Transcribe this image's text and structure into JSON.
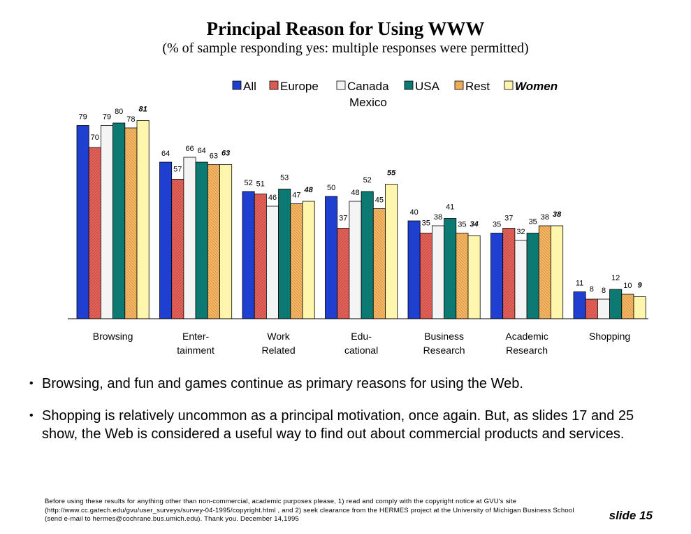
{
  "colors": {
    "All": "#1f3fd0",
    "Europe": "#e0645c",
    "Canada Mexico": "#f4f4f4",
    "USA": "#0c7a72",
    "Rest": "#f4b766",
    "Women": "#fff6ad"
  },
  "chart_data": {
    "type": "bar",
    "title": "Principal Reason for Using WWW",
    "subtitle": "(% of sample responding yes: multiple responses were permitted)",
    "categories": [
      [
        "Browsing"
      ],
      [
        "Enter-",
        "tainment"
      ],
      [
        "Work",
        "Related"
      ],
      [
        "Edu-",
        "cational"
      ],
      [
        "Business",
        "Research"
      ],
      [
        "Academic",
        "Research"
      ],
      [
        "Shopping"
      ]
    ],
    "series": [
      {
        "name": "All",
        "legend": [
          "All"
        ],
        "values": [
          79,
          64,
          52,
          50,
          40,
          35,
          11
        ]
      },
      {
        "name": "Europe",
        "legend": [
          "Europe"
        ],
        "values": [
          70,
          57,
          51,
          37,
          35,
          37,
          8
        ]
      },
      {
        "name": "Canada Mexico",
        "legend": [
          "Canada",
          "Mexico"
        ],
        "values": [
          79,
          66,
          46,
          48,
          38,
          32,
          8
        ]
      },
      {
        "name": "USA",
        "legend": [
          "USA"
        ],
        "values": [
          80,
          64,
          53,
          52,
          41,
          35,
          12
        ]
      },
      {
        "name": "Rest",
        "legend": [
          "Rest"
        ],
        "values": [
          78,
          63,
          47,
          45,
          35,
          38,
          10
        ]
      },
      {
        "name": "Women",
        "legend": [
          "Women"
        ],
        "values": [
          81,
          63,
          48,
          55,
          34,
          38,
          9
        ]
      }
    ],
    "ylim": [
      0,
      90
    ],
    "grid": false,
    "legend_position": "top"
  },
  "bullets": [
    "Browsing, and fun and games continue as primary reasons for using the Web.",
    "Shopping is relatively uncommon as a principal motivation, once again.  But, as slides 17 and 25 show, the Web is considered a useful way to find out about commercial products and services."
  ],
  "footnote": "Before using these results for anything other than non-commercial, academic purposes please, 1) read and comply with the copyright notice at GVU's site (http://www.cc.gatech.edu/gvu/user_surveys/survey-04-1995/copyright.html , and 2) seek clearance from the HERMES  project at the University of Michigan Business School (send e-mail to hermes@cochrane.bus.umich.edu).  Thank you.             December 14,1995",
  "slide_label": "slide 15"
}
